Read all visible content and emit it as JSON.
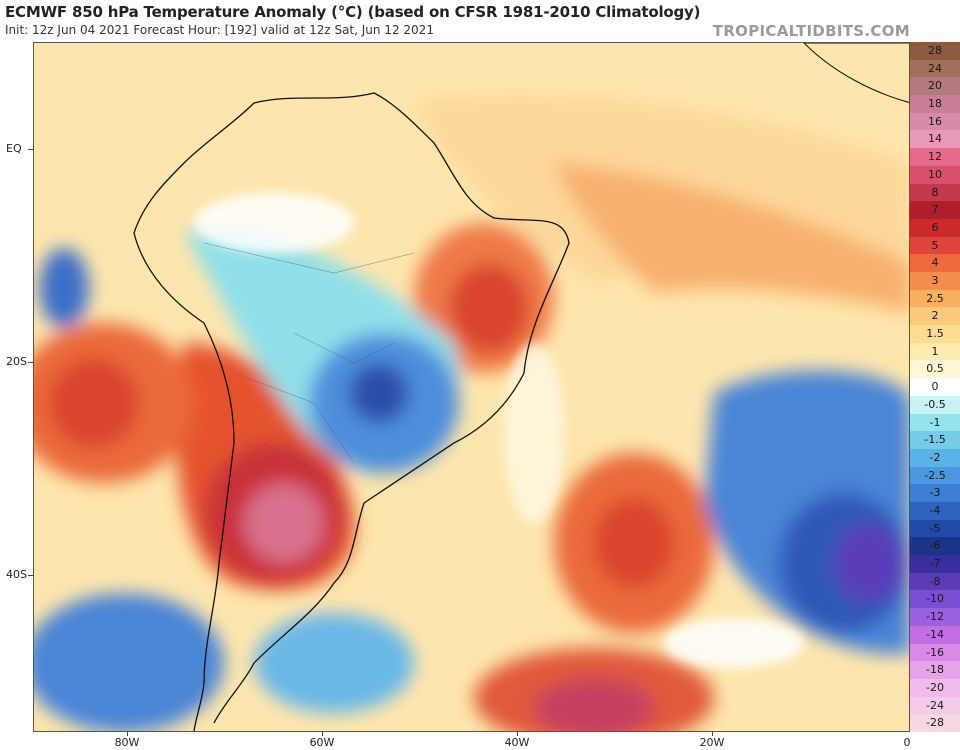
{
  "header": {
    "title": "ECMWF 850 hPa Temperature Anomaly (°C) (based on CFSR 1981-2010 Climatology)",
    "subtitle": "Init: 12z Jun 04 2021   Forecast Hour: [192]   valid at 12z Sat, Jun 12 2021",
    "credit": "TROPICALTIDBITS.COM"
  },
  "axes": {
    "lat_labels": [
      "EQ",
      "20S",
      "40S"
    ],
    "lon_labels": [
      "80W",
      "60W",
      "40W",
      "20W",
      "0"
    ]
  },
  "legend": {
    "labels": [
      "28",
      "24",
      "20",
      "18",
      "16",
      "14",
      "12",
      "10",
      "8",
      "7",
      "6",
      "5",
      "4",
      "3",
      "2.5",
      "2",
      "1.5",
      "1",
      "0.5",
      "0",
      "-0.5",
      "-1",
      "-1.5",
      "-2",
      "-2.5",
      "-3",
      "-4",
      "-5",
      "-6",
      "-7",
      "-8",
      "-10",
      "-12",
      "-14",
      "-16",
      "-18",
      "-20",
      "-24",
      "-28"
    ],
    "colors": [
      "#8c5a3c",
      "#a0705a",
      "#b4787f",
      "#c87f95",
      "#d88aa8",
      "#e79bb8",
      "#e36c8c",
      "#d8506c",
      "#c43a4c",
      "#b01e2c",
      "#cc2a2a",
      "#e0453a",
      "#ee6a3c",
      "#f48e4c",
      "#f8b060",
      "#fbc97a",
      "#fddc94",
      "#feebb0",
      "#fff7d6",
      "#ffffff",
      "#c9f2f4",
      "#95e4ec",
      "#74cde8",
      "#5ab3e6",
      "#4b98de",
      "#3d7fd4",
      "#2f63c0",
      "#2149a6",
      "#1c3488",
      "#3a2e9e",
      "#5a3cb8",
      "#7a4ed0",
      "#9a60e0",
      "#c070e0",
      "#d98ae6",
      "#e6a4e8",
      "#efbcec",
      "#f5cce8",
      "#f8d8e0"
    ]
  }
}
